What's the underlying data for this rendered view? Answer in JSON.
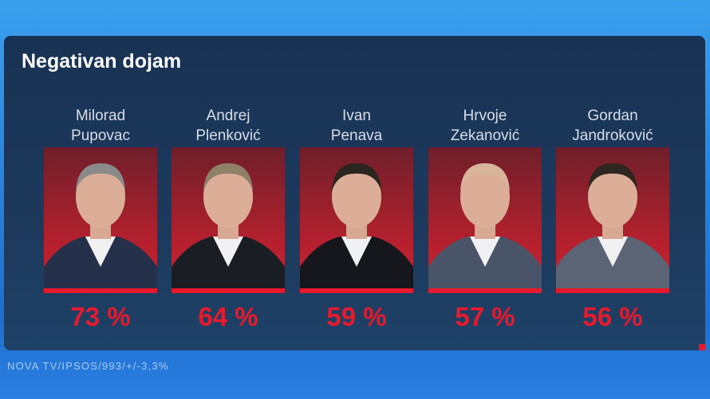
{
  "title": "Negativan dojam",
  "source": "NOVA TV/IPSOS/993/+/-3,3%",
  "colors": {
    "accent": "#e8192c",
    "panel": "#1c3452"
  },
  "chart_data": {
    "type": "table",
    "title": "Negativan dojam",
    "categories": [
      "Milorad Pupovac",
      "Andrej Plenković",
      "Ivan Penava",
      "Hrvoje Zekanović",
      "Gordan Jandroković"
    ],
    "values": [
      73,
      64,
      59,
      57,
      56
    ],
    "unit": "%"
  },
  "candidates": [
    {
      "first": "Milorad",
      "last": "Pupovac",
      "value_label": "73 %",
      "value": 73
    },
    {
      "first": "Andrej",
      "last": "Plenković",
      "value_label": "64 %",
      "value": 64
    },
    {
      "first": "Ivan",
      "last": "Penava",
      "value_label": "59 %",
      "value": 59
    },
    {
      "first": "Hrvoje",
      "last": "Zekanović",
      "value_label": "57 %",
      "value": 57
    },
    {
      "first": "Gordan",
      "last": "Jandroković",
      "value_label": "56 %",
      "value": 56
    }
  ]
}
